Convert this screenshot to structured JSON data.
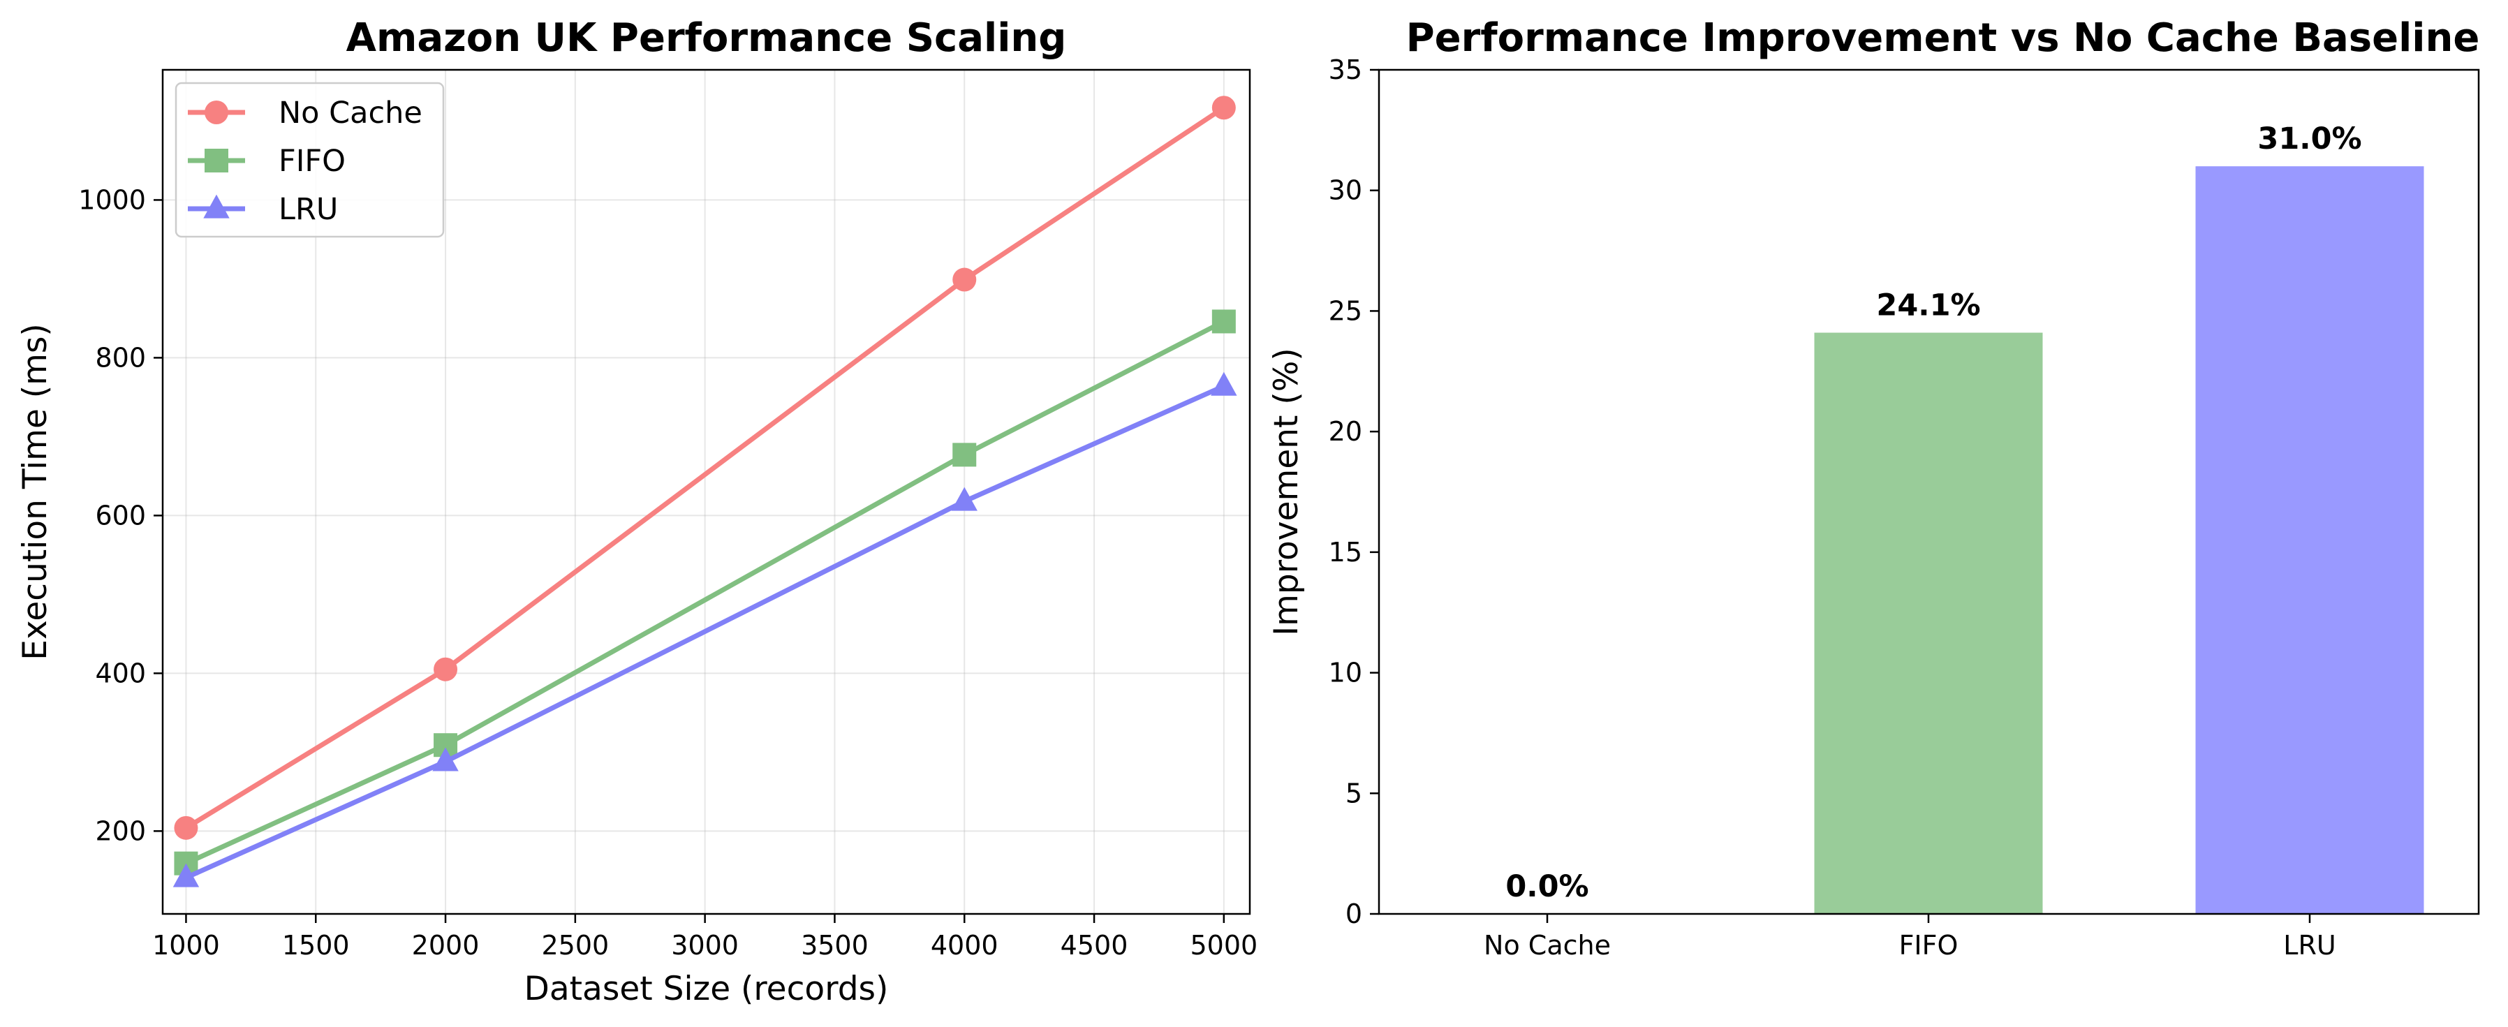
{
  "chart_data": [
    {
      "type": "line",
      "title": "Amazon UK Performance Scaling",
      "xlabel": "Dataset Size (records)",
      "ylabel": "Execution Time (ms)",
      "x": [
        1000,
        2000,
        4000,
        5000
      ],
      "xlim": [
        910,
        5100
      ],
      "ylim": [
        95,
        1165
      ],
      "xticks": [
        1000,
        1500,
        2000,
        2500,
        3000,
        3500,
        4000,
        4500,
        5000
      ],
      "yticks": [
        200,
        400,
        600,
        800,
        1000
      ],
      "grid": true,
      "legend": "top-left",
      "series": [
        {
          "name": "No Cache",
          "values": [
            204,
            405,
            899,
            1117
          ],
          "color": "#f78181",
          "marker": "circle"
        },
        {
          "name": "FIFO",
          "values": [
            159,
            309,
            677,
            846
          ],
          "color": "#81bf81",
          "marker": "square"
        },
        {
          "name": "LRU",
          "values": [
            141,
            288,
            618,
            764
          ],
          "color": "#8181f7",
          "marker": "triangle"
        }
      ]
    },
    {
      "type": "bar",
      "title": "Performance Improvement vs No Cache Baseline",
      "xlabel": "",
      "ylabel": "Improvement (%)",
      "categories": [
        "No Cache",
        "FIFO",
        "LRU"
      ],
      "values": [
        0.0,
        24.1,
        31.0
      ],
      "data_labels": [
        "0.0%",
        "24.1%",
        "31.0%"
      ],
      "colors": [
        "#f78181",
        "#99cc99",
        "#9999ff"
      ],
      "ylim": [
        0,
        35
      ],
      "yticks": [
        0,
        5,
        10,
        15,
        20,
        25,
        30,
        35
      ],
      "grid": false
    }
  ]
}
